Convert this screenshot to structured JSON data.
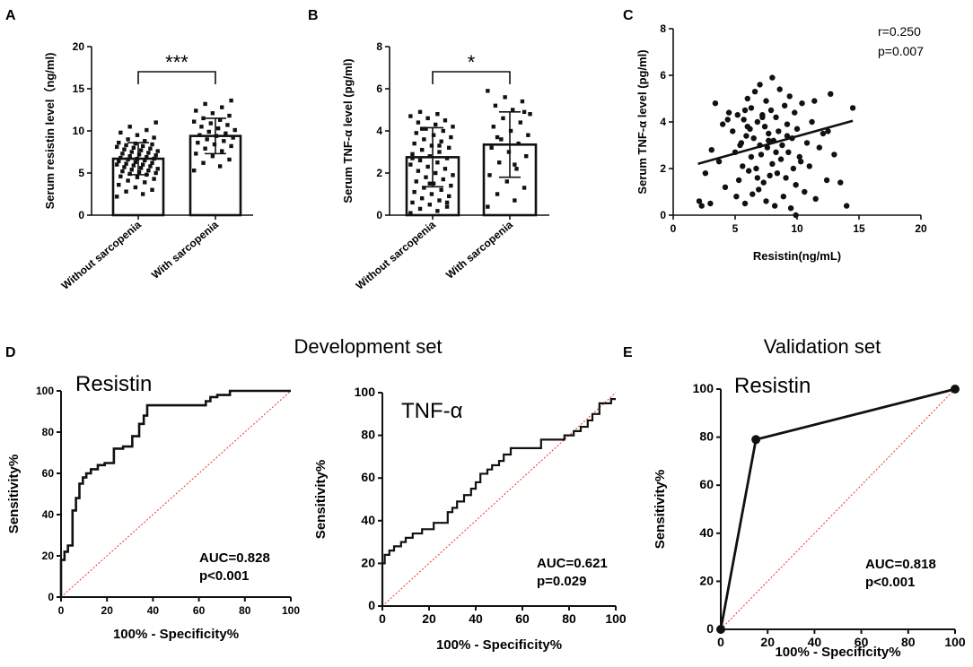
{
  "chart_data": [
    {
      "panel": "A",
      "type": "bar",
      "title": "",
      "ylabel": "Serum resistin level（ng/ml)",
      "ylim": [
        0,
        20
      ],
      "yticks": [
        0,
        5,
        10,
        15,
        20
      ],
      "categories": [
        "Without sarcopenia",
        "With sarcopenia"
      ],
      "means": [
        6.7,
        9.4
      ],
      "sd": [
        1.9,
        2.1
      ],
      "significance": "***",
      "points": [
        [
          2.2,
          2.5,
          2.8,
          3.0,
          3.3,
          3.6,
          3.9,
          4.1,
          4.3,
          4.5,
          4.6,
          4.8,
          4.9,
          5.0,
          5.1,
          5.2,
          5.3,
          5.4,
          5.5,
          5.6,
          5.7,
          5.8,
          5.9,
          6.0,
          6.0,
          6.1,
          6.2,
          6.3,
          6.4,
          6.5,
          6.6,
          6.7,
          6.7,
          6.8,
          6.9,
          7.0,
          7.1,
          7.2,
          7.3,
          7.4,
          7.5,
          7.6,
          7.7,
          7.8,
          7.9,
          8.0,
          8.1,
          8.2,
          8.3,
          8.4,
          8.5,
          8.6,
          8.8,
          9.0,
          9.2,
          9.5,
          9.8,
          10.1,
          10.5,
          11.0
        ],
        [
          5.3,
          5.8,
          6.2,
          6.6,
          7.0,
          7.3,
          7.6,
          7.9,
          8.2,
          8.4,
          8.6,
          8.8,
          9.0,
          9.2,
          9.4,
          9.5,
          9.7,
          9.9,
          10.1,
          10.3,
          10.5,
          10.7,
          10.9,
          11.1,
          11.3,
          11.5,
          11.8,
          12.1,
          12.4,
          12.8,
          13.2,
          13.6
        ]
      ]
    },
    {
      "panel": "B",
      "type": "bar",
      "title": "",
      "ylabel": "Serum TNF-α level  (pg/ml)",
      "ylim": [
        0,
        8
      ],
      "yticks": [
        0,
        2,
        4,
        6,
        8
      ],
      "categories": [
        "Without sarcopenia",
        "With sarcopenia"
      ],
      "means": [
        2.75,
        3.35
      ],
      "sd": [
        1.4,
        1.55
      ],
      "significance": "*",
      "points": [
        [
          0.1,
          0.2,
          0.3,
          0.4,
          0.5,
          0.6,
          0.7,
          0.8,
          0.9,
          1.0,
          1.1,
          1.2,
          1.3,
          1.4,
          1.5,
          1.6,
          1.7,
          1.8,
          1.9,
          2.0,
          2.1,
          2.2,
          2.3,
          2.4,
          2.5,
          2.6,
          2.7,
          2.8,
          2.9,
          3.0,
          3.1,
          3.2,
          3.3,
          3.4,
          3.5,
          3.6,
          3.7,
          3.8,
          3.9,
          4.0,
          4.1,
          4.2,
          4.3,
          4.4,
          4.5,
          4.6,
          4.7,
          4.8,
          4.9,
          0.6,
          1.5,
          2.7,
          3.3,
          4.1
        ],
        [
          0.4,
          0.7,
          1.0,
          1.3,
          1.6,
          1.9,
          2.2,
          2.5,
          2.8,
          3.0,
          3.2,
          3.4,
          3.6,
          3.8,
          4.0,
          4.2,
          4.4,
          4.6,
          4.8,
          5.0,
          5.2,
          5.4,
          5.6,
          5.9,
          2.4,
          3.7,
          4.9
        ]
      ]
    },
    {
      "panel": "C",
      "type": "scatter",
      "title": "",
      "xlabel": "Resistin(ng/mL)",
      "ylabel": "Serum TNF-α level  (pg/ml)",
      "xlim": [
        0,
        20
      ],
      "ylim": [
        0,
        8
      ],
      "xticks": [
        0,
        5,
        10,
        15,
        20
      ],
      "yticks": [
        0,
        2,
        4,
        6,
        8
      ],
      "r_text": "r=0.250",
      "p_text": "p=0.007",
      "fit": {
        "x": [
          2,
          14.5
        ],
        "y": [
          2.2,
          4.05
        ]
      },
      "x": [
        2.1,
        2.3,
        2.6,
        3.0,
        3.1,
        3.4,
        3.7,
        4.0,
        4.2,
        4.5,
        4.8,
        5.0,
        5.1,
        5.2,
        5.3,
        5.5,
        5.6,
        5.7,
        5.8,
        5.9,
        6.0,
        6.1,
        6.2,
        6.3,
        6.3,
        6.4,
        6.5,
        6.6,
        6.7,
        6.8,
        6.9,
        7.0,
        7.0,
        7.1,
        7.2,
        7.3,
        7.4,
        7.5,
        7.5,
        7.6,
        7.7,
        7.8,
        7.9,
        8.0,
        8.0,
        8.1,
        8.2,
        8.3,
        8.4,
        8.5,
        8.6,
        8.7,
        8.8,
        8.9,
        9.0,
        9.1,
        9.2,
        9.3,
        9.4,
        9.5,
        9.6,
        9.7,
        9.8,
        9.9,
        10.0,
        10.2,
        10.4,
        10.6,
        10.8,
        11.0,
        11.2,
        11.5,
        11.8,
        12.1,
        12.4,
        12.7,
        13.0,
        13.5,
        14.0,
        14.5,
        4.4,
        5.4,
        6.0,
        6.8,
        7.2,
        8.3,
        9.2,
        10.3,
        11.4,
        12.5,
        5.8,
        7.7,
        9.9
      ],
      "y": [
        0.6,
        0.4,
        1.8,
        0.5,
        2.8,
        4.8,
        2.3,
        3.9,
        1.2,
        4.4,
        3.6,
        2.7,
        0.8,
        4.3,
        1.5,
        3.1,
        2.1,
        4.1,
        0.5,
        3.4,
        5.0,
        1.9,
        3.7,
        2.5,
        4.6,
        0.9,
        3.3,
        5.3,
        2.0,
        4.0,
        1.1,
        3.0,
        5.6,
        2.6,
        4.3,
        1.4,
        3.8,
        0.6,
        4.9,
        2.9,
        3.5,
        1.7,
        4.5,
        5.9,
        2.2,
        3.2,
        0.4,
        4.2,
        1.8,
        3.6,
        5.4,
        2.4,
        3.0,
        0.8,
        4.7,
        1.6,
        3.9,
        2.7,
        5.1,
        0.3,
        3.3,
        2.0,
        4.4,
        1.3,
        3.7,
        2.5,
        4.8,
        1.0,
        3.1,
        2.1,
        4.0,
        0.7,
        2.9,
        3.5,
        1.5,
        5.2,
        2.6,
        1.4,
        0.4,
        4.6,
        4.1,
        3.0,
        3.8,
        1.6,
        4.2,
        2.7,
        3.4,
        2.3,
        4.9,
        3.6,
        4.5,
        3.2,
        0.0
      ]
    },
    {
      "panel": "D",
      "group_title": "Development set",
      "type": "line",
      "title": "Resistin",
      "xlabel": "100% - Specificity%",
      "ylabel": "Sensitivity%",
      "xlim": [
        0,
        100
      ],
      "ylim": [
        0,
        100
      ],
      "xticks": [
        0,
        20,
        40,
        60,
        80,
        100
      ],
      "yticks": [
        0,
        20,
        40,
        60,
        80,
        100
      ],
      "auc_text": "AUC=0.828",
      "p_text": "p<0.001",
      "roc": {
        "x": [
          0,
          0,
          1.5,
          1.5,
          3,
          3,
          5,
          5,
          6.5,
          6.5,
          8,
          8,
          9.5,
          9.5,
          11,
          11,
          13,
          13,
          16,
          16,
          19,
          19,
          23,
          23,
          27,
          27,
          31,
          31,
          34,
          34,
          36,
          36,
          37.5,
          37.5,
          63,
          63,
          65,
          65,
          68,
          68,
          73.5,
          73.5,
          100
        ],
        "y": [
          0,
          18,
          18,
          22,
          22,
          25,
          25,
          42,
          42,
          48,
          48,
          55,
          55,
          58,
          58,
          60,
          60,
          62,
          62,
          64,
          64,
          65,
          65,
          72,
          72,
          73,
          73,
          78,
          78,
          84,
          84,
          88,
          88,
          93,
          93,
          95,
          95,
          97,
          97,
          98,
          98,
          100,
          100
        ]
      }
    },
    {
      "panel": "D2",
      "group_title": "Development set",
      "type": "line",
      "title": "TNF-α",
      "xlabel": "100% - Specificity%",
      "ylabel": "Sensitivity%",
      "xlim": [
        0,
        100
      ],
      "ylim": [
        0,
        100
      ],
      "xticks": [
        0,
        20,
        40,
        60,
        80,
        100
      ],
      "yticks": [
        0,
        20,
        40,
        60,
        80,
        100
      ],
      "auc_text": "AUC=0.621",
      "p_text": "p=0.029",
      "roc": {
        "x": [
          0,
          0,
          1,
          1,
          3,
          3,
          5,
          5,
          8,
          8,
          10,
          10,
          13,
          13,
          17,
          17,
          22,
          22,
          28,
          28,
          30,
          30,
          32,
          32,
          35,
          35,
          38,
          38,
          40,
          40,
          42,
          42,
          45,
          45,
          47,
          47,
          50,
          50,
          52,
          52,
          55,
          55,
          68,
          68,
          78,
          78,
          82,
          82,
          85,
          85,
          88,
          88,
          90,
          90,
          93,
          93,
          98,
          98,
          100
        ],
        "y": [
          0,
          20,
          20,
          24,
          24,
          26,
          26,
          28,
          28,
          30,
          30,
          32,
          32,
          34,
          34,
          36,
          36,
          39,
          39,
          44,
          44,
          46,
          46,
          49,
          49,
          52,
          52,
          55,
          55,
          58,
          58,
          62,
          62,
          64,
          64,
          66,
          66,
          68,
          68,
          71,
          71,
          74,
          74,
          78,
          78,
          80,
          80,
          82,
          82,
          84,
          84,
          87,
          87,
          90,
          90,
          95,
          95,
          97,
          97
        ]
      }
    },
    {
      "panel": "E",
      "group_title": "Validation set",
      "type": "line",
      "title": "Resistin",
      "xlabel": "100% - Specificity%",
      "ylabel": "Sensitivity%",
      "xlim": [
        0,
        100
      ],
      "ylim": [
        0,
        100
      ],
      "xticks": [
        0,
        20,
        40,
        60,
        80,
        100
      ],
      "yticks": [
        0,
        20,
        40,
        60,
        80,
        100
      ],
      "auc_text": "AUC=0.818",
      "p_text": "p<0.001",
      "roc": {
        "x": [
          0,
          15,
          100
        ],
        "y": [
          0,
          79,
          100
        ]
      }
    }
  ],
  "labels": {
    "panel_a": "A",
    "panel_b": "B",
    "panel_c": "C",
    "panel_d": "D",
    "panel_e": "E",
    "development_set": "Development set",
    "validation_set": "Validation set"
  },
  "colors": {
    "ink": "#111111",
    "diagonal": "#e8321e",
    "bar_fill": "#ffffff"
  }
}
